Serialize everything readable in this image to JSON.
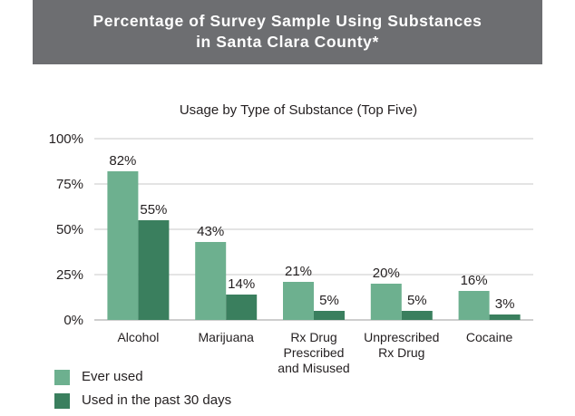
{
  "header": {
    "title_line1": "Percentage of Survey Sample Using Substances",
    "title_line2": "in Santa Clara County*"
  },
  "colors": {
    "header_bg": "#6d6e71",
    "ever_used": "#6db08f",
    "past_30_days": "#3a7f5e",
    "grid": "#c8c8c8",
    "text": "#231f20"
  },
  "chart_data": {
    "type": "bar",
    "title": "Usage by Type of Substance (Top Five)",
    "categories": [
      [
        "Alcohol"
      ],
      [
        "Marijuana"
      ],
      [
        "Rx Drug",
        "Prescribed",
        "and Misused"
      ],
      [
        "Unprescribed",
        "Rx Drug"
      ],
      [
        "Cocaine"
      ]
    ],
    "series": [
      {
        "name": "Ever used",
        "values": [
          82,
          43,
          21,
          20,
          16
        ],
        "labels": [
          "82%",
          "43%",
          "21%",
          "20%",
          "16%"
        ]
      },
      {
        "name": "Used in the past 30 days",
        "values": [
          55,
          14,
          5,
          5,
          3
        ],
        "labels": [
          "55%",
          "14%",
          "5%",
          "5%",
          "3%"
        ]
      }
    ],
    "ylim": [
      0,
      100
    ],
    "yticks": [
      0,
      25,
      50,
      75,
      100
    ],
    "ytick_labels": [
      "0%",
      "25%",
      "50%",
      "75%",
      "100%"
    ],
    "grid": true,
    "legend_position": "bottom-left"
  }
}
